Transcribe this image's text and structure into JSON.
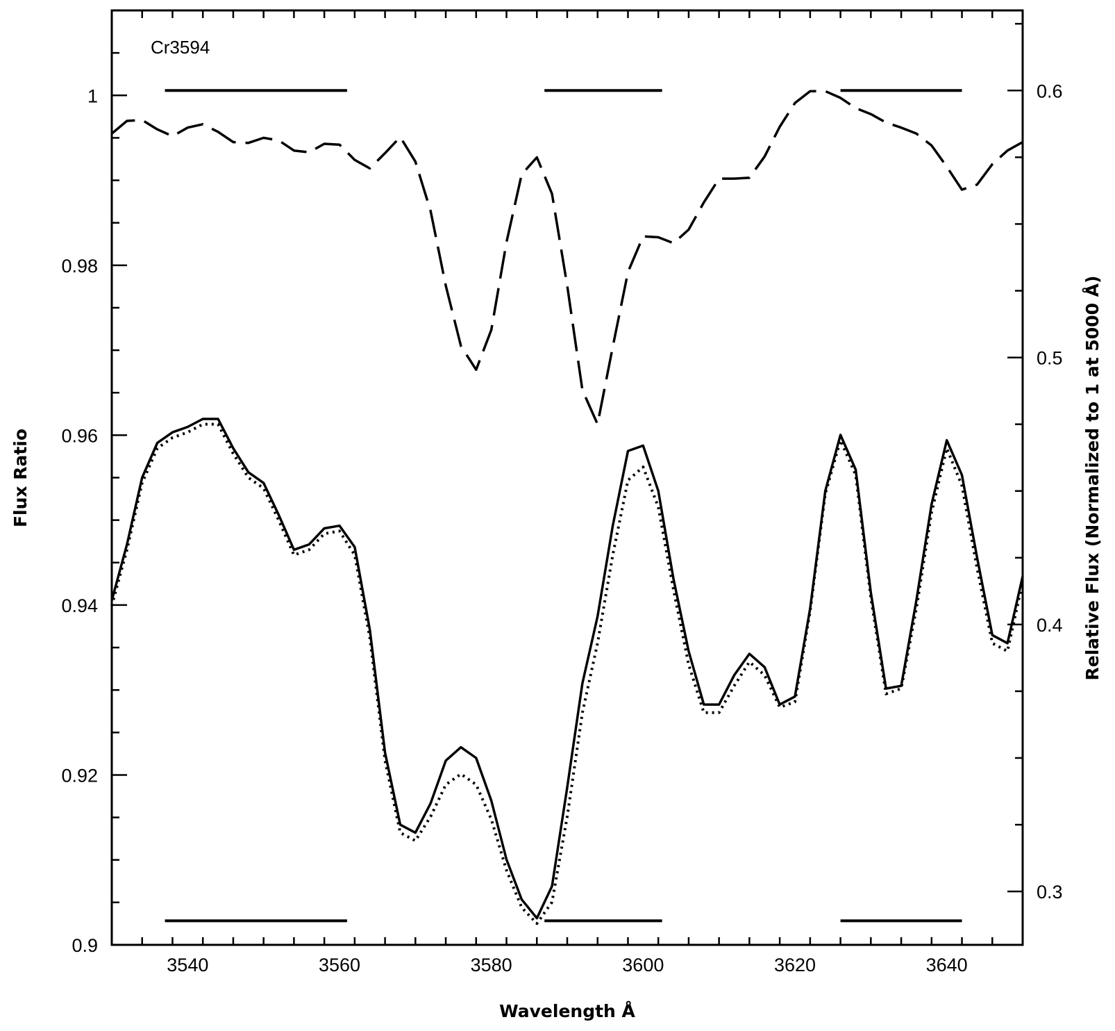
{
  "chart_data": {
    "type": "line",
    "title": "",
    "annotation": "Cr3594",
    "xlabel": "Wavelength Å",
    "ylabel_left": "Flux Ratio",
    "ylabel_right": "Relative Flux (Normalized to 1 at 5000 Å)",
    "xlim": [
      3530,
      3650
    ],
    "ylim_left": [
      0.9,
      1.01
    ],
    "ylim_right": [
      0.28,
      0.63
    ],
    "x_ticks": [
      "3540",
      "3560",
      "3580",
      "3600",
      "3620",
      "3640"
    ],
    "y_ticks_left": [
      "0.9",
      "0.92",
      "0.94",
      "0.96",
      "0.98",
      "1"
    ],
    "y_ticks_right": [
      "0.3",
      "0.4",
      "0.5",
      "0.6"
    ],
    "bands": [
      [
        3537,
        3561
      ],
      [
        3587,
        3602.5
      ],
      [
        3626,
        3642
      ]
    ],
    "band_y": {
      "top": 0.6,
      "bottom": 0.289
    },
    "grid": false,
    "legend": "none",
    "series": [
      {
        "style": "dashed",
        "axis": "left",
        "x": [
          3530,
          3532,
          3534,
          3536,
          3538,
          3540,
          3542,
          3544,
          3546,
          3548,
          3550,
          3552,
          3554,
          3556,
          3558,
          3560,
          3562,
          3564,
          3566,
          3568,
          3570,
          3572,
          3574,
          3576,
          3578,
          3580,
          3582,
          3584,
          3586,
          3588,
          3590,
          3592,
          3594,
          3596,
          3598,
          3600,
          3602,
          3604,
          3606,
          3608,
          3610,
          3612,
          3614,
          3616,
          3618,
          3620,
          3622,
          3624,
          3626,
          3628,
          3630,
          3632,
          3634,
          3636,
          3638,
          3640,
          3642,
          3644,
          3646,
          3648,
          3650
        ],
        "y": [
          0.9955,
          0.997,
          0.9971,
          0.996,
          0.9952,
          0.9962,
          0.9966,
          0.9957,
          0.9945,
          0.9944,
          0.995,
          0.9947,
          0.9935,
          0.9933,
          0.9943,
          0.9942,
          0.9924,
          0.9914,
          0.9932,
          0.9951,
          0.9922,
          0.9864,
          0.9776,
          0.9705,
          0.9677,
          0.9724,
          0.9827,
          0.9907,
          0.9927,
          0.9884,
          0.9776,
          0.9653,
          0.9613,
          0.9704,
          0.9792,
          0.9834,
          0.9833,
          0.9826,
          0.9842,
          0.9874,
          0.9902,
          0.9902,
          0.9903,
          0.9928,
          0.9963,
          0.9991,
          1.0005,
          1.0005,
          0.9997,
          0.9985,
          0.9978,
          0.9968,
          0.9962,
          0.9955,
          0.9941,
          0.9916,
          0.9889,
          0.9895,
          0.9919,
          0.9935,
          0.9945
        ]
      },
      {
        "style": "solid",
        "axis": "right",
        "x": [
          3530,
          3532,
          3534,
          3536,
          3538,
          3540,
          3542,
          3544,
          3546,
          3548,
          3550,
          3552,
          3554,
          3556,
          3558,
          3560,
          3562,
          3564,
          3566,
          3568,
          3570,
          3572,
          3574,
          3576,
          3578,
          3580,
          3582,
          3584,
          3586,
          3588,
          3590,
          3592,
          3594,
          3596,
          3598,
          3600,
          3602,
          3604,
          3606,
          3608,
          3610,
          3612,
          3614,
          3616,
          3618,
          3620,
          3622,
          3624,
          3626,
          3628,
          3630,
          3632,
          3634,
          3636,
          3638,
          3640,
          3642,
          3644,
          3646,
          3648,
          3650
        ],
        "y": [
          0.409,
          0.43,
          0.455,
          0.468,
          0.472,
          0.474,
          0.477,
          0.477,
          0.466,
          0.457,
          0.453,
          0.441,
          0.428,
          0.43,
          0.436,
          0.437,
          0.429,
          0.398,
          0.352,
          0.325,
          0.322,
          0.333,
          0.349,
          0.354,
          0.35,
          0.334,
          0.312,
          0.297,
          0.29,
          0.302,
          0.339,
          0.378,
          0.403,
          0.437,
          0.465,
          0.467,
          0.45,
          0.417,
          0.39,
          0.37,
          0.37,
          0.381,
          0.389,
          0.384,
          0.37,
          0.373,
          0.406,
          0.45,
          0.471,
          0.458,
          0.412,
          0.376,
          0.377,
          0.409,
          0.445,
          0.469,
          0.456,
          0.425,
          0.396,
          0.393,
          0.418
        ]
      },
      {
        "style": "dotted",
        "axis": "right",
        "x": [
          3530,
          3532,
          3534,
          3536,
          3538,
          3540,
          3542,
          3544,
          3546,
          3548,
          3550,
          3552,
          3554,
          3556,
          3558,
          3560,
          3562,
          3564,
          3566,
          3568,
          3570,
          3572,
          3574,
          3576,
          3578,
          3580,
          3582,
          3584,
          3586,
          3588,
          3590,
          3592,
          3594,
          3596,
          3598,
          3600,
          3602,
          3604,
          3606,
          3608,
          3610,
          3612,
          3614,
          3616,
          3618,
          3620,
          3622,
          3624,
          3626,
          3628,
          3630,
          3632,
          3634,
          3636,
          3638,
          3640,
          3642,
          3644,
          3646,
          3648,
          3650
        ],
        "y": [
          0.407,
          0.428,
          0.453,
          0.466,
          0.47,
          0.472,
          0.475,
          0.475,
          0.464,
          0.455,
          0.451,
          0.439,
          0.426,
          0.428,
          0.434,
          0.435,
          0.426,
          0.395,
          0.349,
          0.322,
          0.319,
          0.328,
          0.34,
          0.344,
          0.34,
          0.327,
          0.308,
          0.294,
          0.288,
          0.296,
          0.328,
          0.367,
          0.393,
          0.426,
          0.454,
          0.459,
          0.444,
          0.413,
          0.385,
          0.367,
          0.367,
          0.377,
          0.386,
          0.381,
          0.369,
          0.371,
          0.405,
          0.449,
          0.469,
          0.456,
          0.41,
          0.374,
          0.376,
          0.406,
          0.442,
          0.466,
          0.452,
          0.421,
          0.393,
          0.39,
          0.416
        ]
      }
    ]
  }
}
